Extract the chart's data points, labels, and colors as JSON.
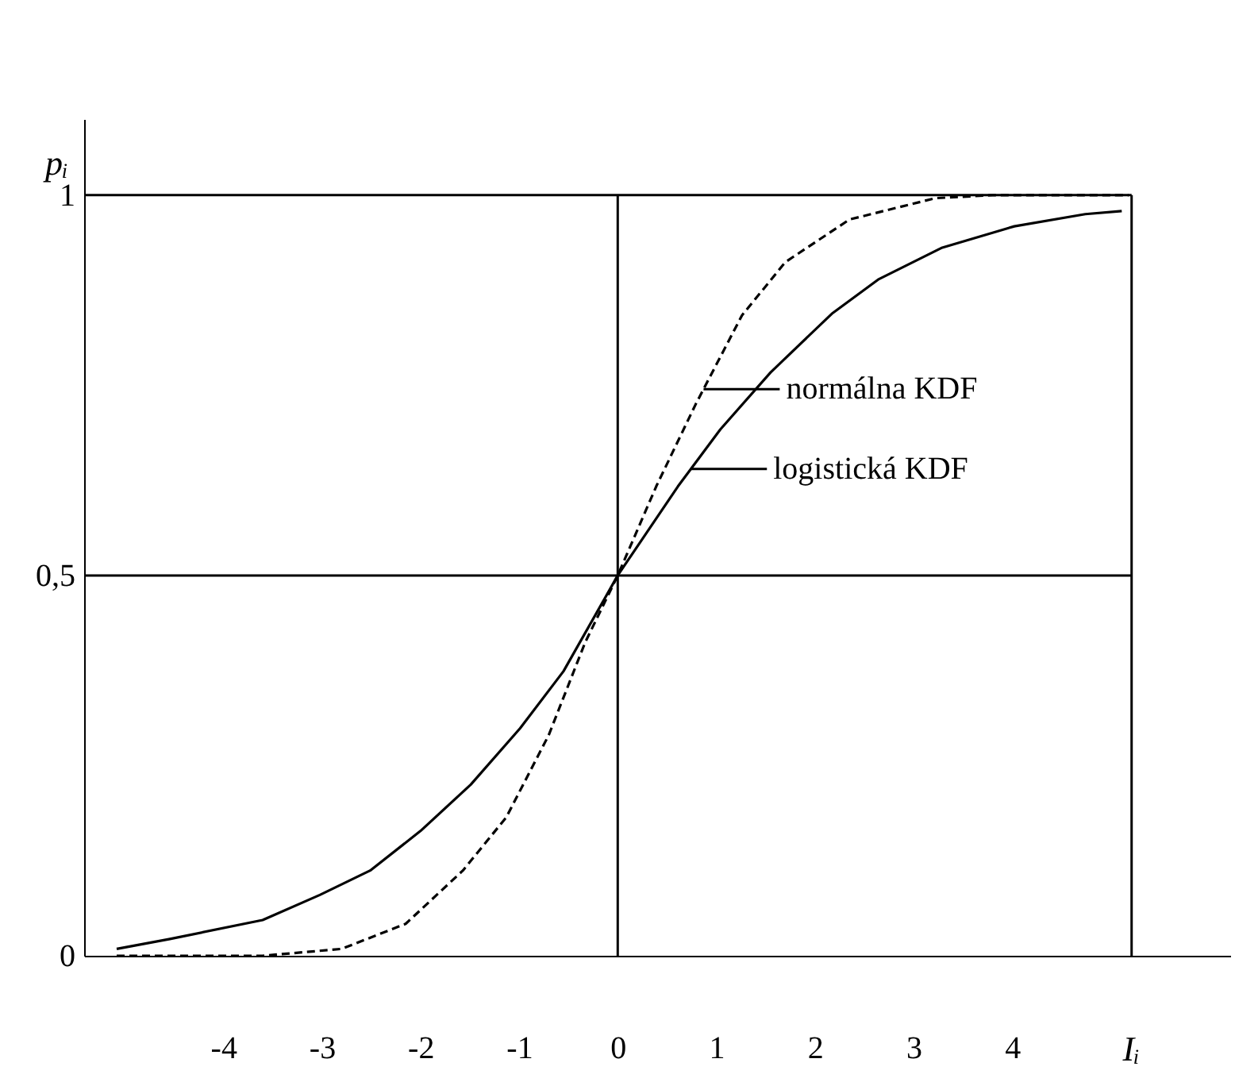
{
  "chart_data": {
    "type": "line",
    "xlabel": "Iᵢ",
    "ylabel": "pᵢ",
    "xlim": [
      -5.41,
      6.21
    ],
    "xticks": [
      -4,
      -3,
      -2,
      -1,
      0,
      1,
      2,
      3,
      4
    ],
    "ylim": [
      0,
      1.1
    ],
    "yticks": [
      0,
      {
        "value": 0.5,
        "label": "0,5"
      },
      1
    ],
    "grid": false,
    "series": [
      {
        "color": "#000000",
        "line_style": "dashed",
        "x": [
          -5.08,
          -3.6,
          -2.8,
          -2.15,
          -1.57,
          -1.13,
          -0.7,
          -0.33,
          0,
          0.39,
          0.79,
          1.26,
          1.7,
          2.35,
          3.22,
          3.8,
          5.18
        ],
        "values": [
          0,
          0,
          0.009,
          0.042,
          0.112,
          0.182,
          0.29,
          0.412,
          0.5,
          0.617,
          0.725,
          0.842,
          0.912,
          0.968,
          0.996,
          1.0,
          1.0
        ]
      },
      {
        "color": "#000000",
        "line_style": "solid",
        "x": [
          -5.08,
          -4.54,
          -3.6,
          -3.02,
          -2.51,
          -2.0,
          -1.49,
          -0.99,
          -0.55,
          0,
          0.61,
          1.04,
          1.55,
          2.17,
          2.64,
          3.29,
          4.02,
          4.74,
          5.11
        ],
        "values": [
          0.009,
          0.022,
          0.047,
          0.08,
          0.112,
          0.164,
          0.225,
          0.299,
          0.374,
          0.5,
          0.617,
          0.692,
          0.767,
          0.844,
          0.889,
          0.931,
          0.959,
          0.975,
          0.979
        ]
      }
    ],
    "ref_lines": [
      {
        "axis": "y",
        "value": 0.5
      },
      {
        "axis": "y",
        "value": 1
      },
      {
        "axis": "x",
        "value": 0
      },
      {
        "axis": "x",
        "value": 5.21
      }
    ],
    "annotations": [
      {
        "text": "normálna KDF",
        "x": 0.87,
        "y": 0.745
      },
      {
        "text": "logistická KDF",
        "x": 0.74,
        "y": 0.64
      }
    ]
  }
}
